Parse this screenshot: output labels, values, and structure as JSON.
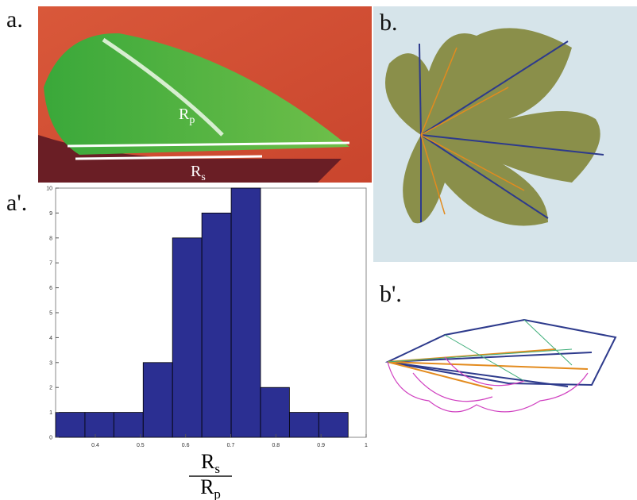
{
  "panel_labels": {
    "a": "a.",
    "b": "b.",
    "a_prime": "a'.",
    "b_prime": "b'."
  },
  "photo_labels": {
    "rp": [
      "R",
      "p"
    ],
    "rs": [
      "R",
      "s"
    ]
  },
  "chart_data": {
    "type": "histogram",
    "bins": [
      0.312,
      0.377,
      0.441,
      0.506,
      0.571,
      0.636,
      0.701,
      0.766,
      0.83,
      0.895,
      0.96
    ],
    "counts": [
      1,
      1,
      1,
      3,
      8,
      9,
      10,
      2,
      1,
      1
    ],
    "color": "#2b2f92",
    "xlim": [
      0.312,
      1
    ],
    "xticks": [
      0.4,
      0.5,
      0.6,
      0.7,
      0.8,
      0.9,
      1
    ],
    "ylim": [
      0,
      10
    ],
    "yticks": [
      0,
      1,
      2,
      3,
      4,
      5,
      6,
      7,
      8,
      9,
      10
    ],
    "x_label": {
      "numerator": [
        "R",
        "s"
      ],
      "denominator": [
        "R",
        "p"
      ]
    }
  }
}
